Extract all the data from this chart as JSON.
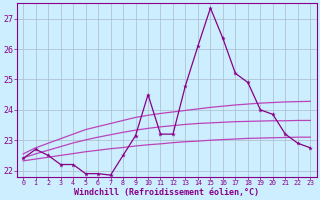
{
  "x": [
    0,
    1,
    2,
    3,
    4,
    5,
    6,
    7,
    8,
    9,
    10,
    11,
    12,
    13,
    14,
    15,
    16,
    17,
    18,
    19,
    20,
    21,
    22,
    23
  ],
  "windchill": [
    22.4,
    22.7,
    22.5,
    22.2,
    22.2,
    21.9,
    21.9,
    21.85,
    22.5,
    23.15,
    24.5,
    23.2,
    23.2,
    24.8,
    26.1,
    27.35,
    26.35,
    25.2,
    24.9,
    24.0,
    23.85,
    23.2,
    22.9,
    22.75
  ],
  "reg_upper": [
    22.55,
    22.75,
    22.9,
    23.05,
    23.2,
    23.35,
    23.45,
    23.55,
    23.65,
    23.75,
    23.82,
    23.88,
    23.93,
    23.98,
    24.03,
    24.08,
    24.12,
    24.16,
    24.19,
    24.22,
    24.24,
    24.26,
    24.27,
    24.28
  ],
  "reg_mid": [
    22.42,
    22.55,
    22.67,
    22.79,
    22.91,
    23.01,
    23.1,
    23.18,
    23.26,
    23.33,
    23.39,
    23.44,
    23.48,
    23.52,
    23.55,
    23.57,
    23.59,
    23.61,
    23.62,
    23.63,
    23.64,
    23.64,
    23.65,
    23.65
  ],
  "reg_lower": [
    22.32,
    22.38,
    22.44,
    22.5,
    22.56,
    22.62,
    22.67,
    22.72,
    22.76,
    22.81,
    22.85,
    22.88,
    22.92,
    22.95,
    22.97,
    23.0,
    23.02,
    23.04,
    23.06,
    23.07,
    23.08,
    23.09,
    23.1,
    23.1
  ],
  "line_color": "#880088",
  "reg_color": "#bb44bb",
  "bg_color": "#cceeff",
  "grid_color": "#aabbcc",
  "xlabel": "Windchill (Refroidissement éolien,°C)",
  "ylim": [
    21.8,
    27.5
  ],
  "xlim": [
    -0.5,
    23.5
  ],
  "yticks": [
    22,
    23,
    24,
    25,
    26,
    27
  ],
  "xticks": [
    0,
    1,
    2,
    3,
    4,
    5,
    6,
    7,
    8,
    9,
    10,
    11,
    12,
    13,
    14,
    15,
    16,
    17,
    18,
    19,
    20,
    21,
    22,
    23
  ]
}
